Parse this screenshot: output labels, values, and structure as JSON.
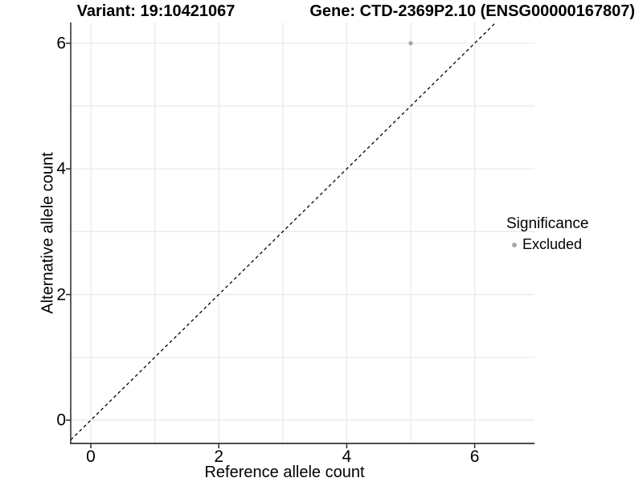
{
  "chart_data": {
    "type": "scatter",
    "titles": {
      "left": "Variant: 19:10421067",
      "right": "Gene: CTD-2369P2.10 (ENSG00000167807)"
    },
    "xlabel": "Reference allele count",
    "ylabel": "Alternative allele count",
    "xlim": [
      -0.31,
      6.93
    ],
    "ylim": [
      -0.37,
      6.33
    ],
    "xticks": [
      0,
      2,
      4,
      6
    ],
    "yticks": [
      0,
      2,
      4,
      6
    ],
    "grid": true,
    "grid_interval": 1,
    "reference_line": {
      "kind": "identity",
      "equation": "y = x",
      "style": "dashed",
      "color": "#000000"
    },
    "series": [
      {
        "name": "Excluded",
        "color": "#a9a9a9",
        "points": [
          {
            "x": 5,
            "y": 6
          }
        ]
      }
    ],
    "legend": {
      "title": "Significance",
      "position": "right",
      "items": [
        {
          "label": "Excluded",
          "color": "#a9a9a9",
          "marker": "dot"
        }
      ]
    },
    "colors": {
      "gridline": "#e8e8e8",
      "axis_line": "#333333",
      "tick_mark": "#333333",
      "text": "#000000"
    }
  }
}
